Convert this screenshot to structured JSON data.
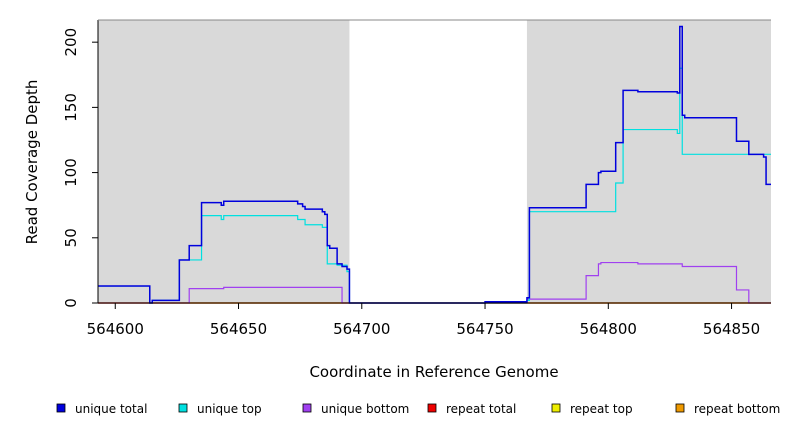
{
  "chart_data": {
    "type": "line",
    "xlabel": "Coordinate in Reference Genome",
    "ylabel": "Read Coverage Depth",
    "xlim": [
      564593,
      564866
    ],
    "ylim": [
      0,
      217
    ],
    "x_ticks": [
      564600,
      564650,
      564700,
      564750,
      564800,
      564850
    ],
    "y_ticks": [
      0,
      50,
      100,
      150,
      200
    ],
    "shaded_regions": [
      [
        564593,
        564695
      ],
      [
        564767,
        564866
      ]
    ],
    "legend_position": "bottom",
    "series": [
      {
        "name": "unique total",
        "color": "#0000dd",
        "points": [
          [
            564593,
            13
          ],
          [
            564614,
            13
          ],
          [
            564614,
            0
          ],
          [
            564615,
            0
          ],
          [
            564615,
            2
          ],
          [
            564626,
            2
          ],
          [
            564626,
            33
          ],
          [
            564630,
            33
          ],
          [
            564630,
            44
          ],
          [
            564635,
            44
          ],
          [
            564635,
            77
          ],
          [
            564643,
            77
          ],
          [
            564643,
            75
          ],
          [
            564644,
            75
          ],
          [
            564644,
            78
          ],
          [
            564674,
            78
          ],
          [
            564674,
            76
          ],
          [
            564676,
            76
          ],
          [
            564676,
            74
          ],
          [
            564677,
            74
          ],
          [
            564677,
            72
          ],
          [
            564684,
            72
          ],
          [
            564684,
            70
          ],
          [
            564685,
            70
          ],
          [
            564685,
            68
          ],
          [
            564686,
            68
          ],
          [
            564686,
            44
          ],
          [
            564687,
            44
          ],
          [
            564687,
            42
          ],
          [
            564690,
            42
          ],
          [
            564690,
            30
          ],
          [
            564692,
            30
          ],
          [
            564692,
            28
          ],
          [
            564694,
            28
          ],
          [
            564694,
            26
          ],
          [
            564695,
            26
          ],
          [
            564695,
            0
          ],
          [
            564750,
            0
          ],
          [
            564750,
            1
          ],
          [
            564767,
            1
          ],
          [
            564767,
            4
          ],
          [
            564768,
            4
          ],
          [
            564768,
            73
          ],
          [
            564791,
            73
          ],
          [
            564791,
            91
          ],
          [
            564796,
            91
          ],
          [
            564796,
            100
          ],
          [
            564797,
            100
          ],
          [
            564797,
            101
          ],
          [
            564803,
            101
          ],
          [
            564803,
            123
          ],
          [
            564806,
            123
          ],
          [
            564806,
            163
          ],
          [
            564812,
            163
          ],
          [
            564812,
            162
          ],
          [
            564828,
            162
          ],
          [
            564828,
            161
          ],
          [
            564829,
            161
          ],
          [
            564829,
            212
          ],
          [
            564830,
            212
          ],
          [
            564830,
            144
          ],
          [
            564831,
            144
          ],
          [
            564831,
            142
          ],
          [
            564852,
            142
          ],
          [
            564852,
            124
          ],
          [
            564857,
            124
          ],
          [
            564857,
            114
          ],
          [
            564863,
            114
          ],
          [
            564863,
            112
          ],
          [
            564864,
            112
          ],
          [
            564864,
            91
          ],
          [
            564866,
            91
          ]
        ]
      },
      {
        "name": "unique top",
        "color": "#00e0e0",
        "points": [
          [
            564593,
            13
          ],
          [
            564614,
            13
          ],
          [
            564614,
            0
          ],
          [
            564615,
            0
          ],
          [
            564615,
            2
          ],
          [
            564626,
            2
          ],
          [
            564626,
            33
          ],
          [
            564635,
            33
          ],
          [
            564635,
            67
          ],
          [
            564643,
            67
          ],
          [
            564643,
            64
          ],
          [
            564644,
            64
          ],
          [
            564644,
            67
          ],
          [
            564674,
            67
          ],
          [
            564674,
            64
          ],
          [
            564677,
            64
          ],
          [
            564677,
            60
          ],
          [
            564684,
            60
          ],
          [
            564684,
            58
          ],
          [
            564686,
            58
          ],
          [
            564686,
            30
          ],
          [
            564690,
            30
          ],
          [
            564690,
            29
          ],
          [
            564694,
            29
          ],
          [
            564694,
            24
          ],
          [
            564695,
            24
          ],
          [
            564695,
            0
          ],
          [
            564767,
            0
          ],
          [
            564767,
            2
          ],
          [
            564768,
            2
          ],
          [
            564768,
            70
          ],
          [
            564803,
            70
          ],
          [
            564803,
            92
          ],
          [
            564806,
            92
          ],
          [
            564806,
            133
          ],
          [
            564828,
            133
          ],
          [
            564828,
            130
          ],
          [
            564829,
            130
          ],
          [
            564829,
            180
          ],
          [
            564830,
            180
          ],
          [
            564830,
            114
          ],
          [
            564866,
            114
          ]
        ]
      },
      {
        "name": "unique bottom",
        "color": "#a040f0",
        "points": [
          [
            564593,
            0
          ],
          [
            564630,
            0
          ],
          [
            564630,
            11
          ],
          [
            564644,
            11
          ],
          [
            564644,
            12
          ],
          [
            564692,
            12
          ],
          [
            564692,
            0
          ],
          [
            564767,
            0
          ],
          [
            564767,
            3
          ],
          [
            564791,
            3
          ],
          [
            564791,
            21
          ],
          [
            564796,
            21
          ],
          [
            564796,
            30
          ],
          [
            564797,
            30
          ],
          [
            564797,
            31
          ],
          [
            564812,
            31
          ],
          [
            564812,
            30
          ],
          [
            564830,
            30
          ],
          [
            564830,
            28
          ],
          [
            564852,
            28
          ],
          [
            564852,
            10
          ],
          [
            564857,
            10
          ],
          [
            564857,
            0
          ],
          [
            564866,
            0
          ]
        ]
      },
      {
        "name": "repeat total",
        "color": "#ee0000",
        "points": [
          [
            564593,
            0
          ],
          [
            564866,
            0
          ]
        ]
      },
      {
        "name": "repeat top",
        "color": "#eeee00",
        "points": [
          [
            564593,
            0
          ],
          [
            564866,
            0
          ]
        ]
      },
      {
        "name": "repeat bottom",
        "color": "#ee9900",
        "points": [
          [
            564593,
            0
          ],
          [
            564866,
            0
          ]
        ]
      }
    ]
  }
}
